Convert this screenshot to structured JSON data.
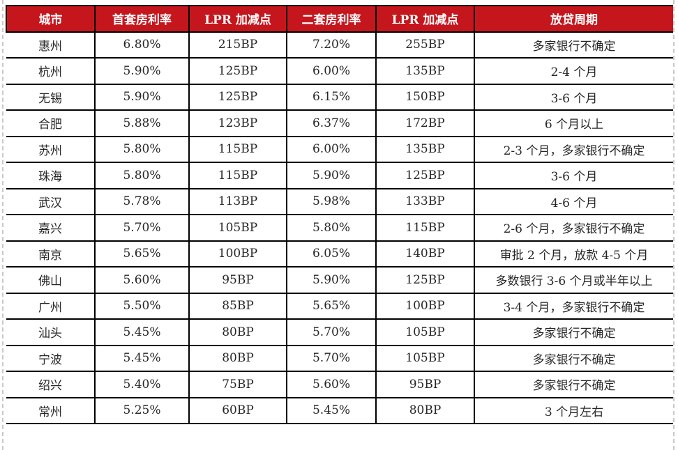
{
  "chart_data": {
    "type": "table",
    "title": "",
    "columns": [
      "城市",
      "首套房利率",
      "LPR 加减点",
      "二套房利率",
      "LPR 加减点",
      "放贷周期"
    ],
    "rows": [
      [
        "惠州",
        "6.80%",
        "215BP",
        "7.20%",
        "255BP",
        "多家银行不确定"
      ],
      [
        "杭州",
        "5.90%",
        "125BP",
        "6.00%",
        "135BP",
        "2-4 个月"
      ],
      [
        "无锡",
        "5.90%",
        "125BP",
        "6.15%",
        "150BP",
        "3-6 个月"
      ],
      [
        "合肥",
        "5.88%",
        "123BP",
        "6.37%",
        "172BP",
        "6 个月以上"
      ],
      [
        "苏州",
        "5.80%",
        "115BP",
        "6.00%",
        "135BP",
        "2-3 个月，多家银行不确定"
      ],
      [
        "珠海",
        "5.80%",
        "115BP",
        "5.90%",
        "125BP",
        "3-6 个月"
      ],
      [
        "武汉",
        "5.78%",
        "113BP",
        "5.98%",
        "133BP",
        "4-6 个月"
      ],
      [
        "嘉兴",
        "5.70%",
        "105BP",
        "5.80%",
        "115BP",
        "2-6 个月，多家银行不确定"
      ],
      [
        "南京",
        "5.65%",
        "100BP",
        "6.05%",
        "140BP",
        "审批 2 个月，放款 4-5 个月"
      ],
      [
        "佛山",
        "5.60%",
        "95BP",
        "5.90%",
        "125BP",
        "多数银行 3-6 个月或半年以上"
      ],
      [
        "广州",
        "5.50%",
        "85BP",
        "5.65%",
        "100BP",
        "3-4 个月，多家银行不确定"
      ],
      [
        "汕头",
        "5.45%",
        "80BP",
        "5.70%",
        "105BP",
        "多家银行不确定"
      ],
      [
        "宁波",
        "5.45%",
        "80BP",
        "5.70%",
        "105BP",
        "多家银行不确定"
      ],
      [
        "绍兴",
        "5.40%",
        "75BP",
        "5.60%",
        "95BP",
        "多家银行不确定"
      ],
      [
        "常州",
        "5.25%",
        "60BP",
        "5.45%",
        "80BP",
        "3 个月左右"
      ]
    ],
    "colors": {
      "header_bg": "#c5161d",
      "header_text": "#ffffff",
      "body_text": "#262626",
      "border": "#000000",
      "page_guide": "#c9c9c9"
    },
    "layout": {
      "grid": true,
      "header_position": "top"
    }
  }
}
